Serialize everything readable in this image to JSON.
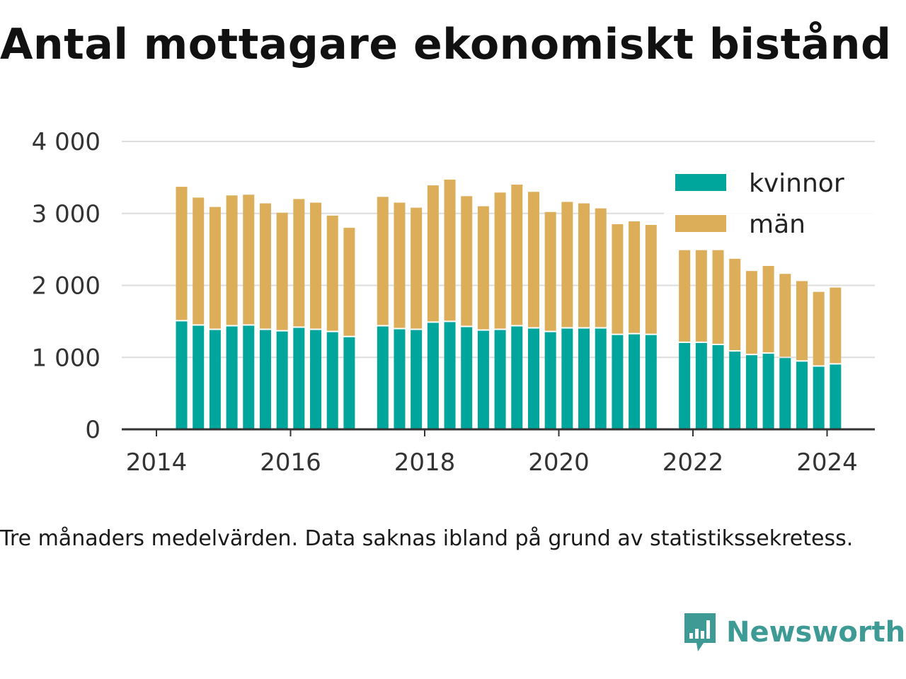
{
  "title": "Antal mottagare ekonomiskt bistånd",
  "note": "Tre månaders medelvärden. Data saknas ibland på grund av statistikssekretess.",
  "brand": {
    "name": "Newsworthy",
    "icon": "newsworthy-logo-icon",
    "color": "#3d9a94"
  },
  "colors": {
    "kvinnor": "#00a69b",
    "man": "#ddae5a",
    "grid": "#dddddd",
    "axis": "#333333"
  },
  "chart_data": {
    "type": "bar",
    "stacked": true,
    "title": "Antal mottagare ekonomiskt bistånd",
    "xlabel": "",
    "ylabel": "",
    "ylim": [
      0,
      4000
    ],
    "xlim": [
      2013.5,
      2024.7
    ],
    "y_ticks": [
      0,
      1000,
      2000,
      3000,
      4000
    ],
    "y_tick_labels": [
      "0",
      "1 000",
      "2 000",
      "3 000",
      "4 000"
    ],
    "x_ticks": [
      2014,
      2016,
      2018,
      2020,
      2022,
      2024
    ],
    "x_tick_labels": [
      "2014",
      "2016",
      "2018",
      "2020",
      "2022",
      "2024"
    ],
    "grid": true,
    "legend_position": "top-right",
    "x": [
      "2014-05",
      "2014-08",
      "2014-11",
      "2015-02",
      "2015-05",
      "2015-08",
      "2015-11",
      "2016-02",
      "2016-05",
      "2016-08",
      "2016-11",
      "2017-05",
      "2017-08",
      "2017-11",
      "2018-02",
      "2018-05",
      "2018-08",
      "2018-11",
      "2019-02",
      "2019-05",
      "2019-08",
      "2019-11",
      "2020-02",
      "2020-05",
      "2020-08",
      "2020-11",
      "2021-02",
      "2021-05",
      "2021-11",
      "2022-02",
      "2022-05",
      "2022-08",
      "2022-11",
      "2023-02",
      "2023-05",
      "2023-08",
      "2023-11",
      "2024-02"
    ],
    "x_decimal": [
      2014.375,
      2014.625,
      2014.875,
      2015.125,
      2015.375,
      2015.625,
      2015.875,
      2016.125,
      2016.375,
      2016.625,
      2016.875,
      2017.375,
      2017.625,
      2017.875,
      2018.125,
      2018.375,
      2018.625,
      2018.875,
      2019.125,
      2019.375,
      2019.625,
      2019.875,
      2020.125,
      2020.375,
      2020.625,
      2020.875,
      2021.125,
      2021.375,
      2021.875,
      2022.125,
      2022.375,
      2022.625,
      2022.875,
      2023.125,
      2023.375,
      2023.625,
      2023.875,
      2024.125
    ],
    "series": [
      {
        "name": "kvinnor",
        "color": "#00a69b",
        "values": [
          1500,
          1440,
          1380,
          1430,
          1440,
          1380,
          1360,
          1410,
          1380,
          1350,
          1280,
          1430,
          1390,
          1380,
          1480,
          1490,
          1420,
          1370,
          1380,
          1430,
          1400,
          1350,
          1400,
          1400,
          1400,
          1310,
          1320,
          1310,
          1200,
          1200,
          1170,
          1080,
          1030,
          1050,
          990,
          940,
          870,
          900
        ]
      },
      {
        "name": "män",
        "color": "#ddae5a",
        "values": [
          1870,
          1780,
          1710,
          1820,
          1820,
          1760,
          1650,
          1790,
          1770,
          1620,
          1520,
          1800,
          1760,
          1700,
          1910,
          1980,
          1820,
          1730,
          1910,
          1970,
          1900,
          1670,
          1760,
          1740,
          1670,
          1540,
          1570,
          1530,
          1290,
          1290,
          1320,
          1290,
          1170,
          1220,
          1170,
          1120,
          1040,
          1070
        ]
      }
    ]
  }
}
